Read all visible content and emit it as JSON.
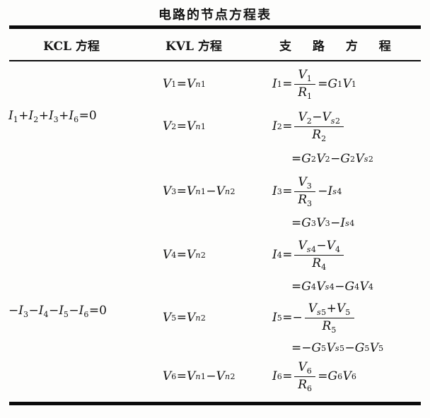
{
  "title": "电路的节点方程表",
  "columns": {
    "kcl": "KCL 方程",
    "kvl": "KVL 方程",
    "branch": "支 路 方 程"
  },
  "groups": [
    {
      "kcl": "I_1+I_2+I_3+I_6=0",
      "rows": [
        {
          "kvl": "V_1=V_n1",
          "branch": [
            "I_1=f{V_1}{R_1}=G_1V_1"
          ]
        },
        {
          "kvl": "V_2=V_n1",
          "branch": [
            "I_2=f{V_2-V_s2}{R_2}",
            "=G_2V_2-G_2V_s2"
          ]
        },
        {
          "kvl": "V_3=V_n1-V_n2",
          "branch": [
            "I_3=f{V_3}{R_3}-I_s4",
            "=G_3V_3-I_s4"
          ]
        }
      ]
    },
    {
      "kcl": "-I_3-I_4-I_5-I_6=0",
      "rows": [
        {
          "kvl": "V_4=V_n2",
          "branch": [
            "I_4=f{V_s4-V_4}{R_4}",
            "=G_4V_s4-G_4V_4"
          ]
        },
        {
          "kvl": "V_5=V_n2",
          "branch": [
            "I_5=-f{V_s5+V_5}{R_5}",
            "=-G_5V_s5-G_5V_5"
          ]
        },
        {
          "kvl": "V_6=V_n1-V_n2",
          "branch": [
            "I_6=f{V_6}{R_6}=G_6V_6"
          ]
        }
      ]
    }
  ]
}
